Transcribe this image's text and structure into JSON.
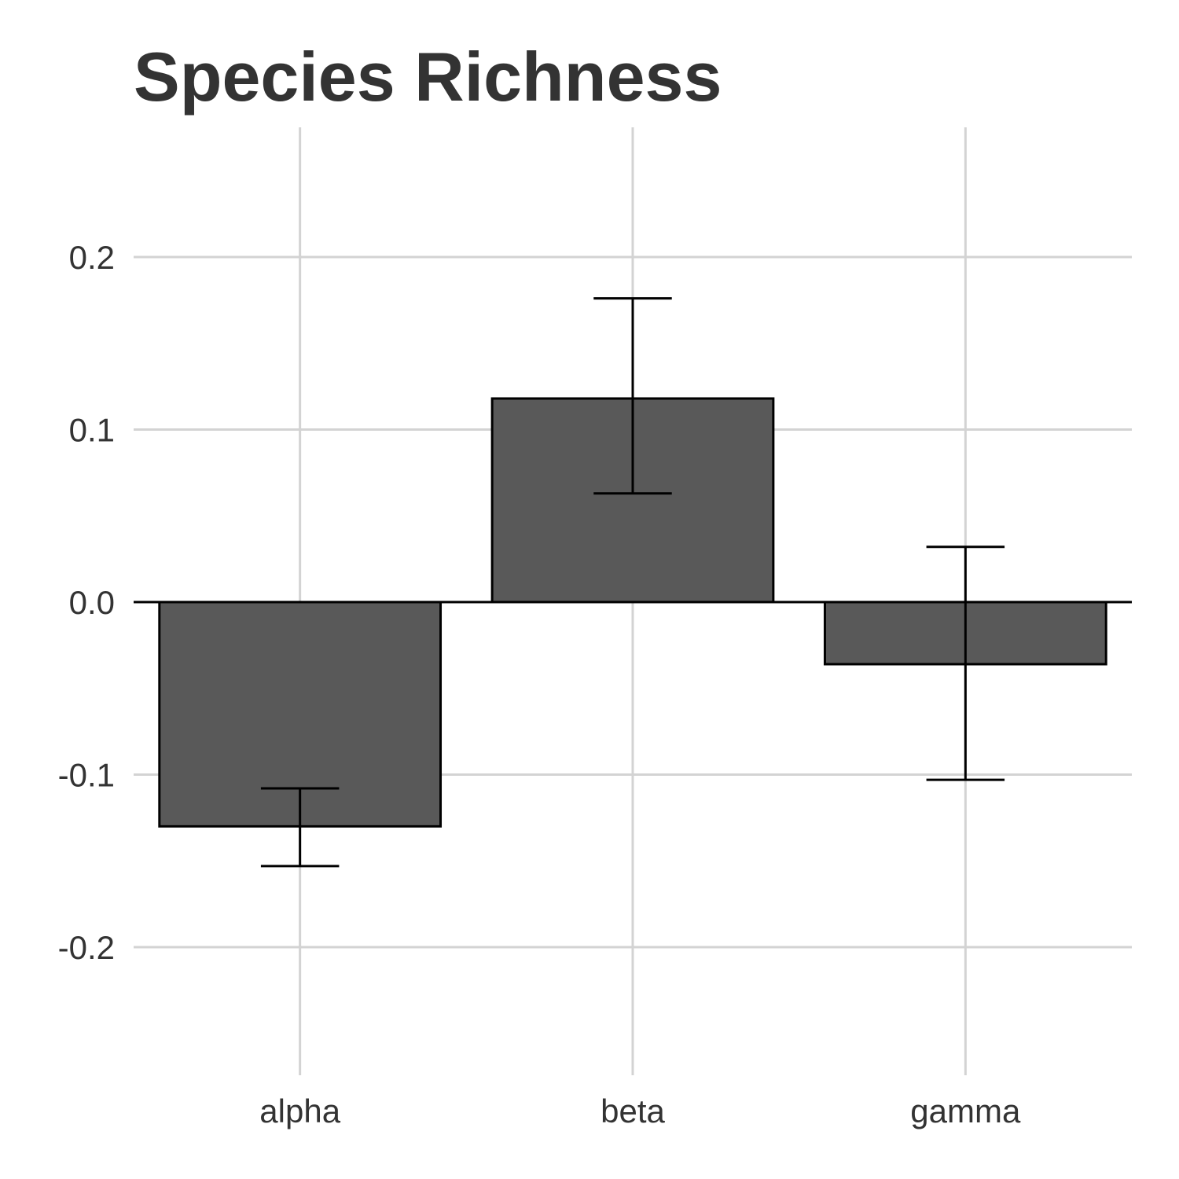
{
  "chart_data": {
    "type": "bar",
    "title": "Species Richness",
    "xlabel": "",
    "ylabel": "",
    "categories": [
      "alpha",
      "beta",
      "gamma"
    ],
    "values": [
      -0.13,
      0.118,
      -0.036
    ],
    "error_low": [
      -0.153,
      0.063,
      -0.103
    ],
    "error_high": [
      -0.108,
      0.176,
      0.032
    ],
    "ylim": [
      -0.275,
      0.275
    ],
    "yticks": [
      0.2,
      0.1,
      0.0,
      -0.1,
      -0.2
    ],
    "ytick_labels": [
      "0.2",
      "0.1",
      "0.0",
      "-0.1",
      "-0.2"
    ],
    "grid": true,
    "colors": {
      "bar": "#595959",
      "grid": "#d3d3d3",
      "text": "#333333"
    }
  }
}
